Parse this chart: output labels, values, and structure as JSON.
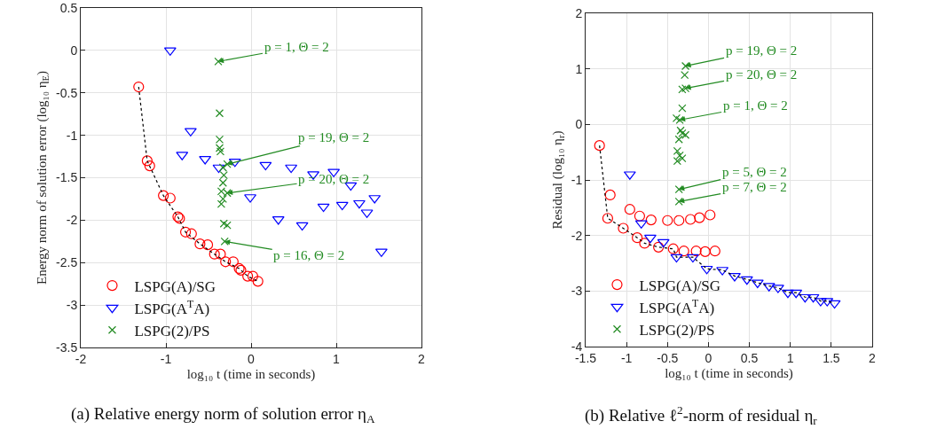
{
  "chart_data": [
    {
      "type": "scatter",
      "title": "(a) Relative energy norm of solution error η$_{A}$",
      "xlabel": "log₁₀ t (time in seconds)",
      "ylabel": "Energy norm of solution error (log₁₀ η$_{E}$)",
      "xlim": [
        -2,
        2
      ],
      "xticks": [
        -2,
        -1,
        0,
        1,
        2
      ],
      "ylim": [
        -3.5,
        0.5
      ],
      "yticks": [
        -3.5,
        -3,
        -2.5,
        -2,
        -1.5,
        -1,
        -0.5,
        0,
        0.5
      ],
      "grid": true,
      "legend": "bottom left",
      "series": [
        {
          "name": "LSPG(A)/SG",
          "color": "#ff0000",
          "marker": "circle",
          "x": [
            -1.32,
            -1.22,
            -1.19,
            -1.03,
            -0.95,
            -0.86,
            -0.84,
            -0.77,
            -0.7,
            -0.6,
            -0.51,
            -0.43,
            -0.36,
            -0.3,
            -0.21,
            -0.14,
            -0.12,
            -0.04,
            0.02,
            0.08
          ],
          "values": [
            -0.43,
            -1.3,
            -1.36,
            -1.71,
            -1.74,
            -1.96,
            -1.98,
            -2.14,
            -2.16,
            -2.28,
            -2.29,
            -2.4,
            -2.4,
            -2.49,
            -2.49,
            -2.57,
            -2.59,
            -2.66,
            -2.66,
            -2.72
          ]
        },
        {
          "name": "LSPG(A$^{T}$A)",
          "color": "#0000ff",
          "marker": "triangle",
          "x": [
            -0.95,
            -0.71,
            -0.81,
            -0.54,
            -0.38,
            -0.19,
            -0.01,
            0.17,
            0.47,
            0.73,
            0.97,
            0.32,
            0.6,
            0.85,
            1.07,
            1.17,
            1.27,
            1.36,
            1.45,
            1.53
          ],
          "values": [
            0.0,
            -0.95,
            -1.23,
            -1.28,
            -1.38,
            -1.31,
            -1.73,
            -1.35,
            -1.38,
            -1.46,
            -1.43,
            -1.99,
            -2.06,
            -1.84,
            -1.82,
            -1.59,
            -1.8,
            -1.91,
            -1.74,
            -2.37
          ]
        },
        {
          "name": "LSPG(2)/PS",
          "color": "#228b22",
          "marker": "cross",
          "x": [
            -0.385,
            -0.37,
            -0.37,
            -0.37,
            -0.36,
            -0.28,
            -0.33,
            -0.32,
            -0.33,
            -0.35,
            -0.28,
            -0.33,
            -0.35,
            -0.32,
            -0.28,
            -0.31
          ],
          "values": [
            -0.13,
            -0.74,
            -1.05,
            -1.15,
            -1.19,
            -1.34,
            -1.38,
            -1.47,
            -1.56,
            -1.66,
            -1.68,
            -1.75,
            -1.81,
            -2.04,
            -2.06,
            -2.25
          ]
        },
        {
          "type": "line",
          "color": "#000000",
          "line_style": "dotted",
          "marker": "none",
          "x": [
            -1.32,
            -1.22,
            -1.03,
            -0.86,
            -0.77,
            -0.6,
            -0.43,
            -0.3,
            -0.14,
            -0.04,
            0.08
          ],
          "values": [
            -0.43,
            -1.3,
            -1.71,
            -1.96,
            -2.14,
            -2.28,
            -2.4,
            -2.49,
            -2.57,
            -2.66,
            -2.72
          ]
        }
      ],
      "annotations": [
        {
          "text": "p = 1, Θ = 2",
          "x": -0.385,
          "y": -0.13
        },
        {
          "text": "p = 19, Θ = 2",
          "x": -0.28,
          "y": -1.34
        },
        {
          "text": "p = 20, Θ = 2",
          "x": -0.28,
          "y": -1.68
        },
        {
          "text": "p = 16, Θ = 2",
          "x": -0.31,
          "y": -2.25
        }
      ]
    },
    {
      "type": "scatter",
      "title": "(b) Relative ℓ$^{2}$-norm of residual η$_{r}$",
      "xlabel": "log₁₀ t (time in seconds)",
      "ylabel": "Residual (log₁₀ η$_{r}$)",
      "xlim": [
        -1.5,
        2
      ],
      "xticks": [
        -1.5,
        -1,
        -0.5,
        0,
        0.5,
        1,
        1.5,
        2
      ],
      "ylim": [
        -4,
        2
      ],
      "yticks": [
        -4,
        -3,
        -2,
        -1,
        0,
        1,
        2
      ],
      "grid": true,
      "legend": "bottom left",
      "series": [
        {
          "name": "LSPG(A)/SG",
          "color": "#ff0000",
          "marker": "circle",
          "x": [
            -1.33,
            -1.2,
            -1.23,
            -1.04,
            -0.96,
            -0.84,
            -0.87,
            -0.78,
            -0.7,
            -0.61,
            -0.5,
            -0.43,
            -0.36,
            -0.3,
            -0.22,
            -0.15,
            -0.11,
            -0.04,
            0.02,
            0.08
          ],
          "values": [
            -0.38,
            -1.27,
            -1.69,
            -1.87,
            -1.53,
            -1.65,
            -2.04,
            -2.14,
            -1.72,
            -2.21,
            -1.73,
            -2.24,
            -1.73,
            -2.28,
            -1.71,
            -2.28,
            -1.68,
            -2.29,
            -1.63,
            -2.28
          ]
        },
        {
          "name": "LSPG(A$^{T}$A)",
          "color": "#0000ff",
          "marker": "triangle",
          "x": [
            -0.96,
            -0.82,
            -0.71,
            -0.55,
            -0.39,
            -0.19,
            -0.02,
            0.17,
            0.32,
            0.47,
            0.6,
            0.74,
            0.85,
            0.97,
            1.07,
            1.18,
            1.28,
            1.37,
            1.45,
            1.54
          ],
          "values": [
            -0.9,
            -1.78,
            -2.04,
            -2.12,
            -2.39,
            -2.39,
            -2.6,
            -2.62,
            -2.73,
            -2.79,
            -2.85,
            -2.91,
            -2.94,
            -3.03,
            -3.03,
            -3.11,
            -3.11,
            -3.18,
            -3.18,
            -3.22
          ]
        },
        {
          "name": "LSPG(2)/PS",
          "color": "#228b22",
          "marker": "cross",
          "x": [
            -0.28,
            -0.29,
            -0.32,
            -0.28,
            -0.32,
            -0.39,
            -0.35,
            -0.34,
            -0.32,
            -0.28,
            -0.36,
            -0.38,
            -0.35,
            -0.38,
            -0.32,
            -0.36,
            -0.36
          ],
          "values": [
            1.05,
            0.89,
            0.63,
            0.65,
            0.29,
            0.11,
            0.08,
            -0.11,
            -0.16,
            -0.19,
            -0.27,
            -0.48,
            -0.56,
            -0.66,
            -0.61,
            -1.17,
            -1.39
          ]
        },
        {
          "type": "line",
          "color": "#000000",
          "line_style": "dotted",
          "marker": "none",
          "x": [
            -1.33,
            -1.23,
            -1.04,
            -0.87,
            -0.78,
            -0.61,
            -0.43,
            -0.39,
            -0.19,
            -0.02,
            0.17,
            0.32,
            0.47,
            0.6,
            0.74,
            0.85,
            0.97,
            1.07,
            1.18,
            1.28,
            1.37,
            1.45,
            1.54
          ],
          "values": [
            -0.38,
            -1.69,
            -1.87,
            -2.04,
            -2.14,
            -2.21,
            -2.24,
            -2.39,
            -2.39,
            -2.6,
            -2.62,
            -2.73,
            -2.79,
            -2.85,
            -2.91,
            -2.94,
            -3.03,
            -3.03,
            -3.11,
            -3.11,
            -3.18,
            -3.18,
            -3.22
          ]
        }
      ],
      "annotations": [
        {
          "text": "p = 19, Θ = 2",
          "x": -0.28,
          "y": 1.05
        },
        {
          "text": "p = 20, Θ = 2",
          "x": -0.28,
          "y": 0.65
        },
        {
          "text": "p = 1, Θ = 2",
          "x": -0.35,
          "y": 0.08
        },
        {
          "text": "p = 5, Θ = 2",
          "x": -0.36,
          "y": -1.17
        },
        {
          "text": "p = 7, Θ = 2",
          "x": -0.36,
          "y": -1.39
        }
      ]
    }
  ]
}
